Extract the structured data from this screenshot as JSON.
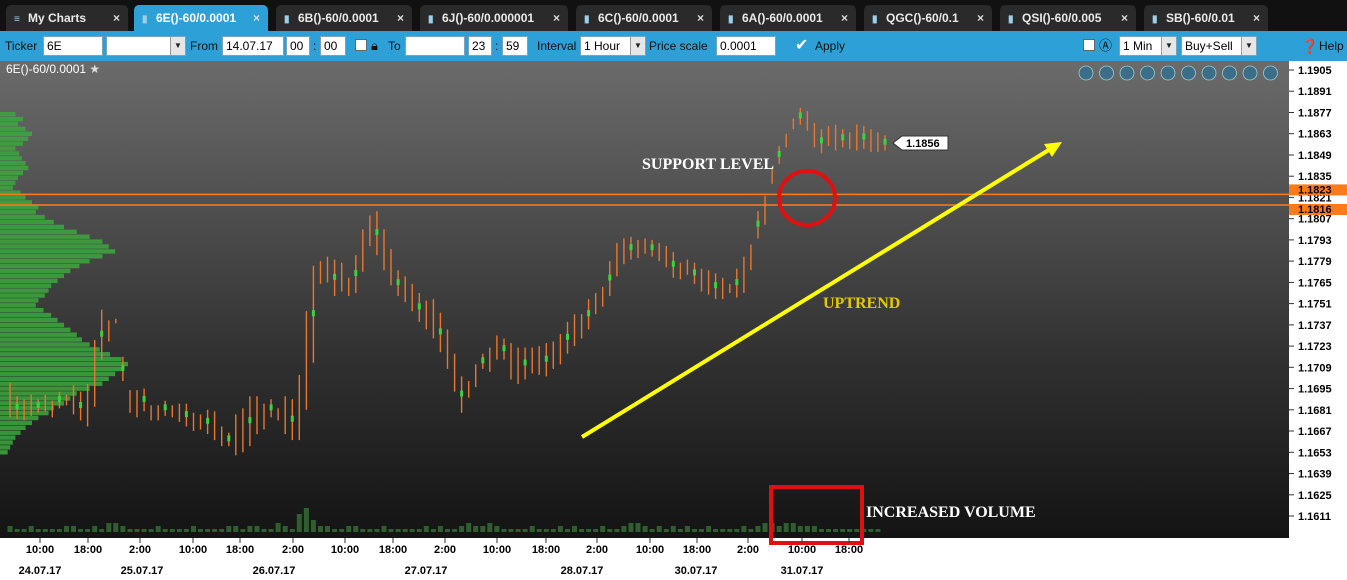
{
  "tabs": [
    {
      "label": "My Charts",
      "icon": "menu-icon",
      "active": false
    },
    {
      "label": "6E()-60/0.0001",
      "icon": "bar-chart-icon",
      "active": true
    },
    {
      "label": "6B()-60/0.0001",
      "icon": "bar-chart-icon",
      "active": false
    },
    {
      "label": "6J()-60/0.000001",
      "icon": "bar-chart-icon",
      "active": false
    },
    {
      "label": "6C()-60/0.0001",
      "icon": "bar-chart-icon",
      "active": false
    },
    {
      "label": "6A()-60/0.0001",
      "icon": "bar-chart-icon",
      "active": false
    },
    {
      "label": "QGC()-60/0.1",
      "icon": "bar-chart-icon",
      "active": false
    },
    {
      "label": "QSI()-60/0.005",
      "icon": "bar-chart-icon",
      "active": false
    },
    {
      "label": "SB()-60/0.01",
      "icon": "bar-chart-icon",
      "active": false
    }
  ],
  "toolbar": {
    "ticker_label": "Ticker",
    "ticker_value": "6E",
    "from_label": "From",
    "from_date": "14.07.17",
    "from_hour": "00",
    "from_min": "00",
    "to_label": "To",
    "to_date": "",
    "to_hour": "23",
    "to_min": "59",
    "interval_label": "Interval",
    "interval_value": "1 Hour",
    "price_scale_label": "Price scale",
    "price_scale_value": "0.0001",
    "apply_label": "Apply",
    "period_value": "1 Min",
    "side_value": "Buy+Sell",
    "help_label": "Help"
  },
  "chart_data": {
    "type": "bar",
    "title": "6E()-60/0.0001",
    "ylim": [
      1.16,
      1.1912
    ],
    "y_ticks": [
      "1.1905",
      "1.1891",
      "1.1877",
      "1.1863",
      "1.1849",
      "1.1835",
      "1.1821",
      "1.1807",
      "1.1793",
      "1.1779",
      "1.1765",
      "1.1751",
      "1.1737",
      "1.1723",
      "1.1709",
      "1.1695",
      "1.1681",
      "1.1667",
      "1.1653",
      "1.1639",
      "1.1625",
      "1.1611"
    ],
    "x_time_ticks": [
      "10:00",
      "18:00",
      "2:00",
      "10:00",
      "18:00",
      "2:00",
      "10:00",
      "18:00",
      "2:00",
      "10:00",
      "18:00",
      "2:00",
      "10:00",
      "18:00",
      "2:00",
      "10:00",
      "18:00"
    ],
    "x_date_ticks": [
      "24.07.17",
      "25.07.17",
      "26.07.17",
      "27.07.17",
      "28.07.17",
      "30.07.17",
      "31.07.17"
    ],
    "last_price": "1.1856",
    "level_upper": "1.1823",
    "level_lower": "1.1816",
    "annotations": [
      "SUPPORT LEVEL",
      "UPTREND",
      "INCREASED VOLUME"
    ],
    "colors": {
      "bar": "#e8772e",
      "level": "#ff7a1a",
      "trend": "#ffff00",
      "highlight": "#e01010",
      "profile": "#3ca83c",
      "annotation_uptrend": "#e6c800"
    },
    "series": [
      {
        "values_low": [
          1.1676,
          1.1675,
          1.1674,
          1.1677,
          1.1679,
          1.168,
          1.1676,
          1.1682,
          1.1684,
          1.1678,
          1.1674,
          1.167,
          1.1683,
          1.1714,
          1.1726,
          1.1738,
          1.17,
          1.1679,
          1.1676,
          1.168,
          1.1674,
          1.1674,
          1.1677,
          1.1676,
          1.1673,
          1.167,
          1.1667,
          1.1668,
          1.1665,
          1.1661,
          1.1657,
          1.1657,
          1.1651,
          1.1653,
          1.1657,
          1.1665,
          1.1668,
          1.1676,
          1.1674,
          1.1665,
          1.1661,
          1.1661,
          1.1681,
          1.1712,
          1.1764,
          1.1765,
          1.1756,
          1.1759,
          1.1756,
          1.1758,
          1.1772,
          1.1789,
          1.1783,
          1.1773,
          1.1763,
          1.1756,
          1.1752,
          1.1746,
          1.1739,
          1.1734,
          1.1728,
          1.1719,
          1.1708,
          1.1693,
          1.1679,
          1.1689,
          1.1696,
          1.1708,
          1.1706,
          1.1714,
          1.1714,
          1.1701,
          1.1698,
          1.1701,
          1.1705,
          1.1704,
          1.1703,
          1.1708,
          1.1711,
          1.1718,
          1.1723,
          1.1728,
          1.1734,
          1.1744,
          1.1749,
          1.1756,
          1.1769,
          1.1777,
          1.178,
          1.1781,
          1.1784,
          1.1782,
          1.1779,
          1.1775,
          1.1768,
          1.1767,
          1.177,
          1.1764,
          1.1759,
          1.1757,
          1.1754,
          1.1754,
          1.1758,
          1.1755,
          1.1758,
          1.1773,
          1.1794,
          1.1803,
          1.183,
          1.1843,
          1.1854,
          1.1866,
          1.1869,
          1.1865,
          1.1854,
          1.185,
          1.1855,
          1.1852,
          1.1854,
          1.1853,
          1.1852,
          1.1853,
          1.1851,
          1.1851,
          1.1852
        ],
        "values_high": [
          1.1699,
          1.169,
          1.1688,
          1.1691,
          1.1688,
          1.1691,
          1.1687,
          1.1693,
          1.1691,
          1.1697,
          1.1693,
          1.1698,
          1.1727,
          1.1747,
          1.174,
          1.1741,
          1.1716,
          1.1694,
          1.1694,
          1.1695,
          1.1684,
          1.1684,
          1.1687,
          1.1684,
          1.1685,
          1.1685,
          1.1679,
          1.1678,
          1.1681,
          1.168,
          1.167,
          1.1666,
          1.1678,
          1.1682,
          1.169,
          1.169,
          1.1685,
          1.1688,
          1.1682,
          1.169,
          1.1688,
          1.1704,
          1.1746,
          1.1776,
          1.1779,
          1.1782,
          1.178,
          1.1778,
          1.1768,
          1.1783,
          1.18,
          1.1809,
          1.1812,
          1.18,
          1.1787,
          1.1773,
          1.1769,
          1.1764,
          1.1758,
          1.1753,
          1.1754,
          1.1745,
          1.1734,
          1.1718,
          1.1703,
          1.17,
          1.1711,
          1.1718,
          1.1722,
          1.173,
          1.1728,
          1.1725,
          1.1722,
          1.1722,
          1.1722,
          1.1723,
          1.1725,
          1.1726,
          1.1731,
          1.1739,
          1.1744,
          1.1744,
          1.1754,
          1.1758,
          1.1762,
          1.1779,
          1.1791,
          1.1794,
          1.1795,
          1.1793,
          1.1794,
          1.1793,
          1.1791,
          1.1789,
          1.1785,
          1.1778,
          1.178,
          1.1778,
          1.1774,
          1.1773,
          1.1771,
          1.1768,
          1.1764,
          1.1774,
          1.1782,
          1.179,
          1.1812,
          1.1822,
          1.1841,
          1.1855,
          1.1863,
          1.1873,
          1.188,
          1.1878,
          1.187,
          1.1866,
          1.1868,
          1.1869,
          1.1866,
          1.1864,
          1.1869,
          1.1868,
          1.1866,
          1.1864,
          1.1862
        ]
      }
    ],
    "volume": [
      2,
      1,
      1,
      2,
      1,
      1,
      1,
      1,
      2,
      2,
      1,
      1,
      2,
      1,
      3,
      3,
      2,
      1,
      1,
      1,
      1,
      2,
      1,
      1,
      1,
      1,
      2,
      1,
      1,
      1,
      1,
      2,
      2,
      1,
      2,
      2,
      1,
      1,
      3,
      2,
      1,
      6,
      8,
      4,
      2,
      2,
      1,
      1,
      2,
      2,
      1,
      1,
      1,
      2,
      1,
      1,
      1,
      1,
      1,
      2,
      1,
      2,
      1,
      1,
      2,
      3,
      2,
      2,
      3,
      2,
      1,
      1,
      1,
      1,
      2,
      1,
      1,
      1,
      2,
      1,
      2,
      1,
      1,
      1,
      2,
      1,
      1,
      2,
      3,
      3,
      2,
      1,
      2,
      1,
      2,
      1,
      2,
      1,
      1,
      2,
      1,
      1,
      1,
      1,
      2,
      1,
      2,
      3,
      3,
      2,
      3,
      3,
      2,
      2,
      2,
      1,
      1,
      1,
      1,
      1,
      1,
      1,
      1,
      1
    ],
    "volume_profile": [
      0.12,
      0.18,
      0.14,
      0.2,
      0.25,
      0.22,
      0.18,
      0.12,
      0.15,
      0.17,
      0.2,
      0.22,
      0.18,
      0.14,
      0.12,
      0.1,
      0.16,
      0.2,
      0.25,
      0.3,
      0.28,
      0.35,
      0.42,
      0.5,
      0.6,
      0.7,
      0.8,
      0.85,
      0.9,
      0.8,
      0.7,
      0.62,
      0.55,
      0.5,
      0.45,
      0.4,
      0.38,
      0.35,
      0.3,
      0.28,
      0.34,
      0.4,
      0.45,
      0.5,
      0.55,
      0.6,
      0.64,
      0.7,
      0.78,
      0.86,
      0.95,
      1.0,
      0.95,
      0.9,
      0.85,
      0.8,
      0.7,
      0.6,
      0.55,
      0.5,
      0.42,
      0.38,
      0.3,
      0.25,
      0.2,
      0.16,
      0.12,
      0.1,
      0.08,
      0.06
    ]
  }
}
